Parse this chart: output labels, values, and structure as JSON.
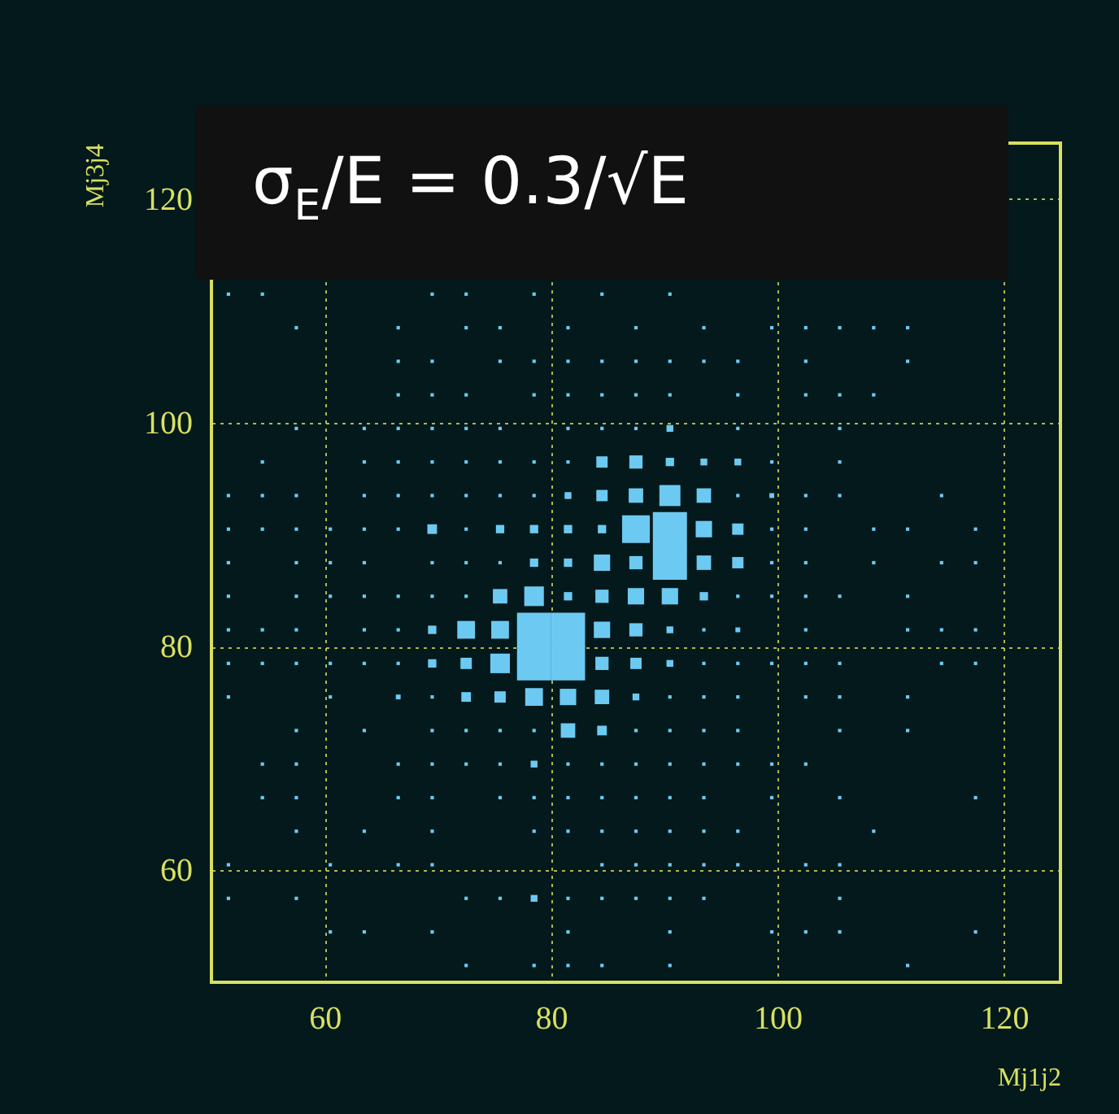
{
  "chart_data": {
    "type": "bubble",
    "xlabel": "Mj1j2",
    "ylabel": "Mj3j4",
    "marker": "square",
    "grid": true,
    "xlim": [
      50,
      125
    ],
    "ylim": [
      50,
      125
    ],
    "xticks": [
      60,
      80,
      100,
      120
    ],
    "yticks": [
      60,
      80,
      100,
      120
    ],
    "annotations": [
      "σ$_{E}$/E = 0.3/√E"
    ],
    "series": [
      {
        "color": "#6ccaf2",
        "x": [
          51.5,
          54.5,
          69.5,
          72.5,
          78.5,
          84.5,
          90.5
        ],
        "values": [
          111.5,
          111.5,
          111.5,
          111.5,
          111.5,
          111.5,
          111.5
        ],
        "sizes": [
          0.01,
          0.01,
          0.01,
          0.01,
          0.01,
          0.01,
          0.01
        ]
      },
      {
        "color": "#6ccaf2",
        "x": [
          57.5,
          66.5,
          72.5,
          75.5,
          81.5,
          87.5,
          93.5,
          99.5,
          102.5,
          105.5,
          108.5,
          111.5
        ],
        "values": [
          108.5,
          108.5,
          108.5,
          108.5,
          108.5,
          108.5,
          108.5,
          108.5,
          108.5,
          108.5,
          108.5,
          108.5
        ],
        "sizes": [
          0.01,
          0.01,
          0.01,
          0.01,
          0.01,
          0.01,
          0.01,
          0.01,
          0.01,
          0.01,
          0.01,
          0.01
        ]
      },
      {
        "color": "#6ccaf2",
        "x": [
          66.5,
          69.5,
          75.5,
          78.5,
          81.5,
          84.5,
          87.5,
          90.5,
          93.5,
          96.5,
          102.5,
          111.5
        ],
        "values": [
          105.5,
          105.5,
          105.5,
          105.5,
          105.5,
          105.5,
          105.5,
          105.5,
          105.5,
          105.5,
          105.5,
          105.5
        ],
        "sizes": [
          0.01,
          0.01,
          0.01,
          0.01,
          0.01,
          0.01,
          0.01,
          0.01,
          0.01,
          0.01,
          0.01,
          0.01
        ]
      },
      {
        "color": "#6ccaf2",
        "x": [
          66.5,
          69.5,
          72.5,
          78.5,
          81.5,
          84.5,
          87.5,
          90.5,
          96.5,
          102.5,
          105.5,
          108.5
        ],
        "values": [
          102.5,
          102.5,
          102.5,
          102.5,
          102.5,
          102.5,
          102.5,
          102.5,
          102.5,
          102.5,
          102.5,
          102.5
        ],
        "sizes": [
          0.01,
          0.01,
          0.01,
          0.01,
          0.01,
          0.01,
          0.01,
          0.01,
          0.01,
          0.01,
          0.01,
          0.01
        ]
      },
      {
        "color": "#6ccaf2",
        "x": [
          57.5,
          63.5,
          66.5,
          69.5,
          72.5,
          75.5,
          81.5,
          84.5,
          87.5,
          90.5,
          96.5,
          105.5
        ],
        "values": [
          99.5,
          99.5,
          99.5,
          99.5,
          99.5,
          99.5,
          99.5,
          99.5,
          99.5,
          99.5,
          99.5,
          99.5
        ],
        "sizes": [
          0.01,
          0.01,
          0.01,
          0.01,
          0.01,
          0.01,
          0.01,
          0.01,
          0.01,
          0.04,
          0.01,
          0.01
        ]
      },
      {
        "color": "#6ccaf2",
        "x": [
          54.5,
          63.5,
          66.5,
          69.5,
          72.5,
          75.5,
          78.5,
          81.5,
          84.5,
          87.5,
          90.5,
          93.5,
          96.5,
          99.5,
          105.5
        ],
        "values": [
          96.5,
          96.5,
          96.5,
          96.5,
          96.5,
          96.5,
          96.5,
          96.5,
          96.5,
          96.5,
          96.5,
          96.5,
          96.5,
          96.5,
          96.5
        ],
        "sizes": [
          0.01,
          0.01,
          0.01,
          0.01,
          0.01,
          0.01,
          0.01,
          0.01,
          0.11,
          0.15,
          0.06,
          0.04,
          0.04,
          0.01,
          0.01
        ]
      },
      {
        "color": "#6ccaf2",
        "x": [
          51.5,
          54.5,
          57.5,
          63.5,
          66.5,
          69.5,
          72.5,
          75.5,
          78.5,
          81.5,
          84.5,
          87.5,
          90.5,
          93.5,
          96.5,
          99.5,
          102.5,
          105.5,
          114.5
        ],
        "values": [
          93.5,
          93.5,
          93.5,
          93.5,
          93.5,
          93.5,
          93.5,
          93.5,
          93.5,
          93.5,
          93.5,
          93.5,
          93.5,
          93.5,
          93.5,
          93.5,
          93.5,
          93.5,
          93.5
        ],
        "sizes": [
          0.01,
          0.01,
          0.01,
          0.01,
          0.01,
          0.01,
          0.01,
          0.01,
          0.01,
          0.04,
          0.11,
          0.18,
          0.38,
          0.18,
          0.01,
          0.02,
          0.01,
          0.01,
          0.01
        ]
      },
      {
        "color": "#6ccaf2",
        "x": [
          51.5,
          54.5,
          57.5,
          60.5,
          63.5,
          66.5,
          69.5,
          72.5,
          75.5,
          78.5,
          81.5,
          84.5,
          87.5,
          90.5,
          93.5,
          96.5,
          99.5,
          102.5,
          108.5,
          111.5,
          117.5
        ],
        "values": [
          90.5,
          90.5,
          90.5,
          90.5,
          90.5,
          90.5,
          90.5,
          90.5,
          90.5,
          90.5,
          90.5,
          90.5,
          90.5,
          90.5,
          90.5,
          90.5,
          90.5,
          90.5,
          90.5,
          90.5,
          90.5
        ],
        "sizes": [
          0.01,
          0.01,
          0.01,
          0.01,
          0.01,
          0.01,
          0.08,
          0.01,
          0.06,
          0.06,
          0.06,
          0.06,
          0.66,
          1,
          0.23,
          0.11,
          0.01,
          0.01,
          0.01,
          0.01,
          0.01
        ]
      },
      {
        "color": "#6ccaf2",
        "x": [
          51.5,
          57.5,
          60.5,
          63.5,
          69.5,
          72.5,
          75.5,
          78.5,
          81.5,
          84.5,
          87.5,
          90.5,
          93.5,
          96.5,
          99.5,
          102.5,
          108.5,
          114.5,
          117.5
        ],
        "values": [
          87.5,
          87.5,
          87.5,
          87.5,
          87.5,
          87.5,
          87.5,
          87.5,
          87.5,
          87.5,
          87.5,
          87.5,
          87.5,
          87.5,
          87.5,
          87.5,
          87.5,
          87.5,
          87.5
        ],
        "sizes": [
          0.01,
          0.01,
          0.01,
          0.01,
          0.01,
          0.01,
          0.01,
          0.06,
          0.06,
          0.23,
          0.15,
          1,
          0.18,
          0.11,
          0.01,
          0.01,
          0.01,
          0.01,
          0.01
        ]
      },
      {
        "color": "#6ccaf2",
        "x": [
          51.5,
          57.5,
          60.5,
          63.5,
          66.5,
          69.5,
          72.5,
          75.5,
          78.5,
          81.5,
          84.5,
          87.5,
          90.5,
          93.5,
          96.5,
          99.5,
          102.5,
          105.5,
          111.5
        ],
        "values": [
          84.5,
          84.5,
          84.5,
          84.5,
          84.5,
          84.5,
          84.5,
          84.5,
          84.5,
          84.5,
          84.5,
          84.5,
          84.5,
          84.5,
          84.5,
          84.5,
          84.5,
          84.5,
          84.5
        ],
        "sizes": [
          0.01,
          0.01,
          0.01,
          0.01,
          0.01,
          0.01,
          0.01,
          0.18,
          0.33,
          0.06,
          0.15,
          0.23,
          0.23,
          0.06,
          0.01,
          0.01,
          0.01,
          0.01,
          0.01
        ]
      },
      {
        "color": "#6ccaf2",
        "x": [
          51.5,
          54.5,
          57.5,
          63.5,
          66.5,
          69.5,
          72.5,
          75.5,
          78.5,
          81.5,
          84.5,
          87.5,
          90.5,
          93.5,
          96.5,
          102.5,
          111.5,
          114.5,
          117.5
        ],
        "values": [
          81.5,
          81.5,
          81.5,
          81.5,
          81.5,
          81.5,
          81.5,
          81.5,
          81.5,
          81.5,
          81.5,
          81.5,
          81.5,
          81.5,
          81.5,
          81.5,
          81.5,
          81.5,
          81.5
        ],
        "sizes": [
          0.01,
          0.01,
          0.01,
          0.01,
          0.01,
          0.06,
          0.27,
          0.27,
          1,
          1,
          0.23,
          0.15,
          0.04,
          0.01,
          0.02,
          0.01,
          0.01,
          0.01,
          0.01
        ]
      },
      {
        "color": "#6ccaf2",
        "x": [
          51.5,
          54.5,
          57.5,
          60.5,
          63.5,
          66.5,
          69.5,
          72.5,
          75.5,
          78.5,
          81.5,
          84.5,
          87.5,
          90.5,
          93.5,
          96.5,
          99.5,
          102.5,
          105.5,
          114.5,
          117.5
        ],
        "values": [
          78.5,
          78.5,
          78.5,
          78.5,
          78.5,
          78.5,
          78.5,
          78.5,
          78.5,
          78.5,
          78.5,
          78.5,
          78.5,
          78.5,
          78.5,
          78.5,
          78.5,
          78.5,
          78.5,
          78.5,
          78.5
        ],
        "sizes": [
          0.01,
          0.01,
          0.01,
          0.01,
          0.01,
          0.01,
          0.06,
          0.11,
          0.33,
          1,
          1,
          0.15,
          0.11,
          0.04,
          0.01,
          0.01,
          0.01,
          0.01,
          0.01,
          0.01,
          0.01
        ]
      },
      {
        "color": "#6ccaf2",
        "x": [
          51.5,
          60.5,
          66.5,
          69.5,
          72.5,
          75.5,
          78.5,
          81.5,
          84.5,
          87.5,
          90.5,
          93.5,
          96.5,
          102.5,
          105.5,
          111.5
        ],
        "values": [
          75.5,
          75.5,
          75.5,
          75.5,
          75.5,
          75.5,
          75.5,
          75.5,
          75.5,
          75.5,
          75.5,
          75.5,
          75.5,
          75.5,
          75.5,
          75.5
        ],
        "sizes": [
          0.01,
          0.01,
          0.02,
          0.01,
          0.08,
          0.11,
          0.27,
          0.23,
          0.18,
          0.04,
          0.01,
          0.01,
          0.01,
          0.01,
          0.01,
          0.01
        ]
      },
      {
        "color": "#6ccaf2",
        "x": [
          57.5,
          63.5,
          69.5,
          72.5,
          75.5,
          78.5,
          81.5,
          84.5,
          87.5,
          90.5,
          93.5,
          96.5,
          105.5,
          111.5
        ],
        "values": [
          72.5,
          72.5,
          72.5,
          72.5,
          72.5,
          72.5,
          72.5,
          72.5,
          72.5,
          72.5,
          72.5,
          72.5,
          72.5,
          72.5
        ],
        "sizes": [
          0.01,
          0.01,
          0.01,
          0.01,
          0.01,
          0.01,
          0.18,
          0.08,
          0.01,
          0.01,
          0.01,
          0.01,
          0.01,
          0.01
        ]
      },
      {
        "color": "#6ccaf2",
        "x": [
          54.5,
          57.5,
          66.5,
          69.5,
          72.5,
          75.5,
          78.5,
          81.5,
          84.5,
          87.5,
          90.5,
          93.5,
          96.5,
          99.5,
          102.5
        ],
        "values": [
          69.5,
          69.5,
          69.5,
          69.5,
          69.5,
          69.5,
          69.5,
          69.5,
          69.5,
          69.5,
          69.5,
          69.5,
          69.5,
          69.5,
          69.5
        ],
        "sizes": [
          0.01,
          0.01,
          0.01,
          0.01,
          0.01,
          0.01,
          0.04,
          0.01,
          0.01,
          0.01,
          0.01,
          0.01,
          0.01,
          0.01,
          0.01
        ]
      },
      {
        "color": "#6ccaf2",
        "x": [
          54.5,
          57.5,
          66.5,
          69.5,
          75.5,
          78.5,
          81.5,
          84.5,
          87.5,
          90.5,
          93.5,
          99.5,
          105.5,
          117.5
        ],
        "values": [
          66.5,
          66.5,
          66.5,
          66.5,
          66.5,
          66.5,
          66.5,
          66.5,
          66.5,
          66.5,
          66.5,
          66.5,
          66.5,
          66.5
        ],
        "sizes": [
          0.01,
          0.01,
          0.01,
          0.01,
          0.01,
          0.01,
          0.01,
          0.01,
          0.01,
          0.01,
          0.01,
          0.01,
          0.01,
          0.01
        ]
      },
      {
        "color": "#6ccaf2",
        "x": [
          57.5,
          63.5,
          69.5,
          78.5,
          81.5,
          84.5,
          87.5,
          90.5,
          93.5,
          96.5,
          108.5
        ],
        "values": [
          63.5,
          63.5,
          63.5,
          63.5,
          63.5,
          63.5,
          63.5,
          63.5,
          63.5,
          63.5,
          63.5
        ],
        "sizes": [
          0.01,
          0.01,
          0.01,
          0.01,
          0.01,
          0.01,
          0.01,
          0.01,
          0.01,
          0.01,
          0.01
        ]
      },
      {
        "color": "#6ccaf2",
        "x": [
          51.5,
          60.5,
          66.5,
          69.5,
          84.5,
          87.5,
          90.5,
          93.5,
          96.5,
          102.5,
          105.5
        ],
        "values": [
          60.5,
          60.5,
          60.5,
          60.5,
          60.5,
          60.5,
          60.5,
          60.5,
          60.5,
          60.5,
          60.5
        ],
        "sizes": [
          0.01,
          0.01,
          0.01,
          0.01,
          0.01,
          0.01,
          0.01,
          0.01,
          0.01,
          0.01,
          0.01
        ]
      },
      {
        "color": "#6ccaf2",
        "x": [
          51.5,
          57.5,
          72.5,
          75.5,
          78.5,
          81.5,
          84.5,
          87.5,
          90.5,
          93.5,
          105.5
        ],
        "values": [
          57.5,
          57.5,
          57.5,
          57.5,
          57.5,
          57.5,
          57.5,
          57.5,
          57.5,
          57.5,
          57.5
        ],
        "sizes": [
          0.01,
          0.01,
          0.01,
          0.01,
          0.04,
          0.01,
          0.01,
          0.01,
          0.01,
          0.01,
          0.01
        ]
      },
      {
        "color": "#6ccaf2",
        "x": [
          60.5,
          63.5,
          69.5,
          81.5,
          90.5,
          99.5,
          102.5,
          105.5,
          117.5
        ],
        "values": [
          54.5,
          54.5,
          54.5,
          54.5,
          54.5,
          54.5,
          54.5,
          54.5,
          54.5
        ],
        "sizes": [
          0.01,
          0.01,
          0.01,
          0.01,
          0.01,
          0.01,
          0.01,
          0.01,
          0.01
        ]
      },
      {
        "color": "#6ccaf2",
        "x": [
          72.5,
          78.5,
          81.5,
          84.5,
          90.5,
          111.5
        ],
        "values": [
          51.5,
          51.5,
          51.5,
          51.5,
          51.5,
          51.5
        ],
        "sizes": [
          0.01,
          0.01,
          0.01,
          0.01,
          0.01,
          0.01
        ]
      }
    ]
  }
}
